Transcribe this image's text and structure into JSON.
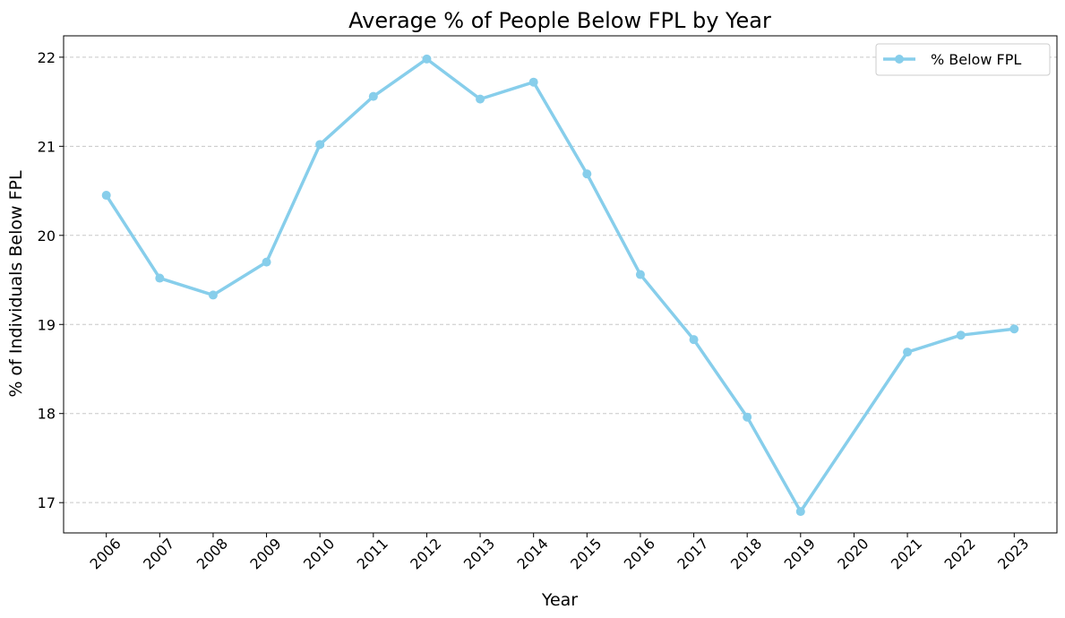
{
  "chart_data": {
    "type": "line",
    "title": "Average % of People Below FPL by Year",
    "xlabel": "Year",
    "ylabel": "% of Individuals Below FPL",
    "categories": [
      "2006",
      "2007",
      "2008",
      "2009",
      "2010",
      "2011",
      "2012",
      "2013",
      "2014",
      "2015",
      "2016",
      "2017",
      "2018",
      "2019",
      "2020",
      "2021",
      "2022",
      "2023"
    ],
    "series": [
      {
        "name": "% Below FPL",
        "color": "#87CEEB",
        "x": [
          2006,
          2007,
          2008,
          2009,
          2010,
          2011,
          2012,
          2013,
          2014,
          2015,
          2016,
          2017,
          2018,
          2019,
          2021,
          2022,
          2023
        ],
        "values": [
          20.45,
          19.52,
          19.33,
          19.7,
          21.02,
          21.56,
          21.98,
          21.53,
          21.72,
          20.69,
          19.56,
          18.83,
          17.96,
          16.9,
          18.69,
          18.88,
          18.95
        ]
      }
    ],
    "y_ticks": [
      17,
      18,
      19,
      20,
      21,
      22
    ],
    "ylim": [
      16.66,
      22.24
    ],
    "xlim": [
      2005.2,
      2023.8
    ],
    "grid": "y-dashed",
    "legend_position": "top-right"
  }
}
